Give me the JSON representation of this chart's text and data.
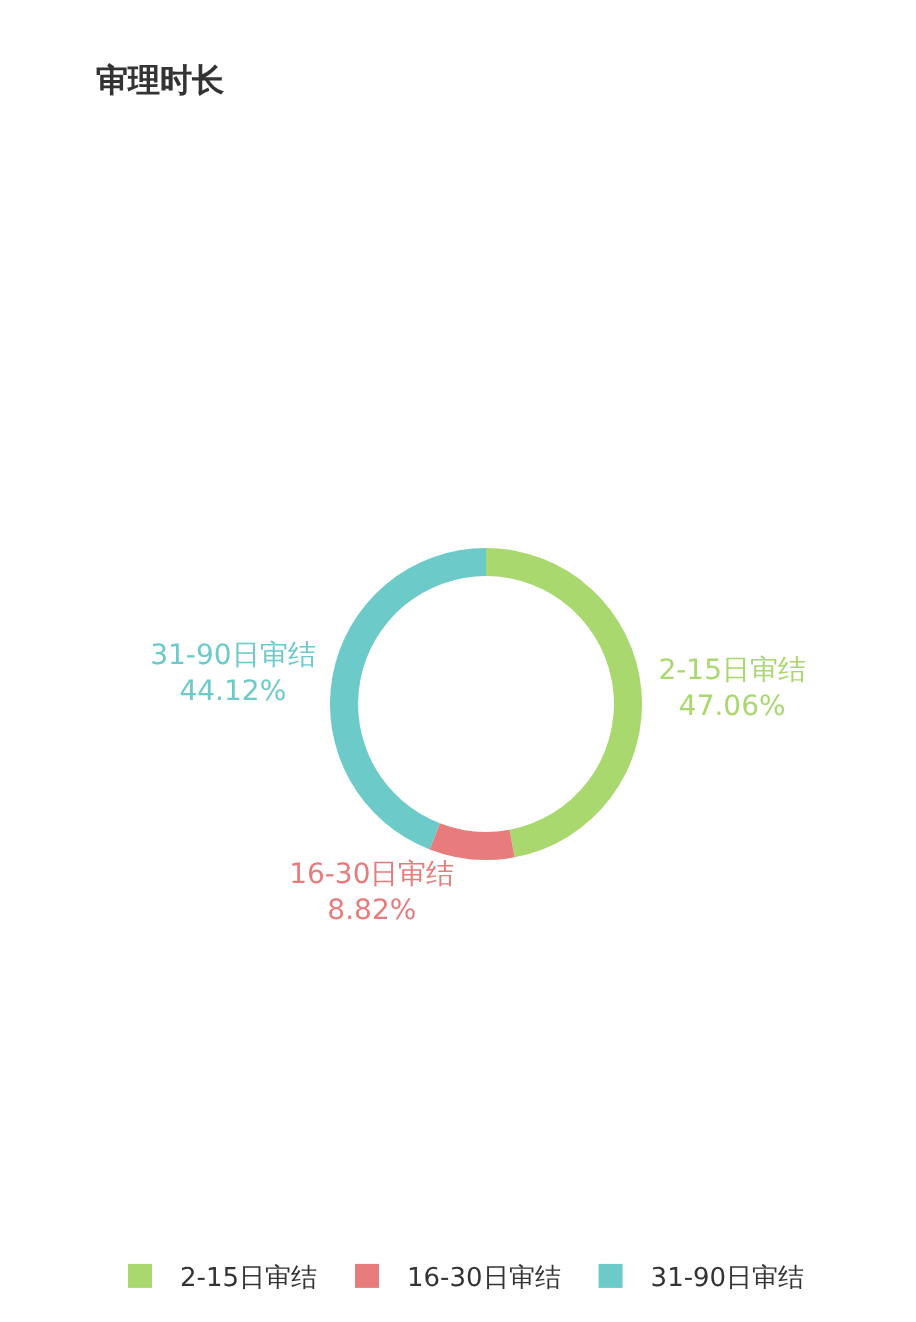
{
  "chart_data": {
    "type": "donut",
    "title": "审理时长",
    "categories": [
      "2-15日审结",
      "16-30日审结",
      "31-90日审结"
    ],
    "values": [
      47.06,
      8.82,
      44.12
    ],
    "colors": [
      "#a9d86e",
      "#e87c7c",
      "#6ccac9"
    ],
    "value_labels": [
      "47.06%",
      "8.82%",
      "44.12%"
    ],
    "legend": "bottom"
  }
}
